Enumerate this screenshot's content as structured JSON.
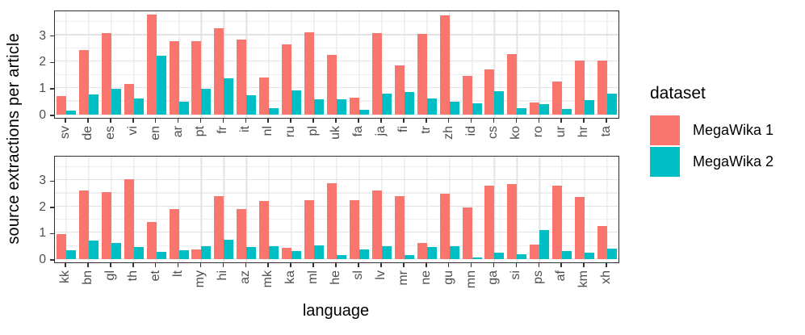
{
  "chart_data": {
    "type": "bar",
    "title": "",
    "xlabel": "language",
    "ylabel": "source extractions per article",
    "legend_title": "dataset",
    "legend_position": "right",
    "grid": true,
    "y_ticks": [
      "0",
      "1",
      "2",
      "3"
    ],
    "ylim": [
      0,
      3.9
    ],
    "series": [
      {
        "name": "MegaWika 1",
        "color": "#F8766D"
      },
      {
        "name": "MegaWika 2",
        "color": "#00BFC4"
      }
    ],
    "panels": [
      {
        "categories": [
          "sv",
          "de",
          "es",
          "vi",
          "en",
          "ar",
          "pt",
          "fr",
          "it",
          "nl",
          "ru",
          "pl",
          "uk",
          "fa",
          "ja",
          "fi",
          "tr",
          "zh",
          "id",
          "cs",
          "ko",
          "ro",
          "ur",
          "hr",
          "ta"
        ],
        "megawika1": [
          0.7,
          2.45,
          3.07,
          1.15,
          3.78,
          2.78,
          2.78,
          3.25,
          2.82,
          1.4,
          2.65,
          3.12,
          2.25,
          0.65,
          3.08,
          1.85,
          3.05,
          3.75,
          1.45,
          1.7,
          2.3,
          0.45,
          1.25,
          2.05,
          2.05
        ],
        "megawika2": [
          0.15,
          0.77,
          0.98,
          0.6,
          2.22,
          0.5,
          0.97,
          1.37,
          0.73,
          0.25,
          0.92,
          0.57,
          0.58,
          0.17,
          0.8,
          0.85,
          0.6,
          0.5,
          0.42,
          0.87,
          0.25,
          0.4,
          0.2,
          0.55,
          0.78
        ]
      },
      {
        "categories": [
          "kk",
          "bn",
          "gl",
          "th",
          "et",
          "lt",
          "my",
          "hi",
          "az",
          "mk",
          "ka",
          "ml",
          "he",
          "sl",
          "lv",
          "mr",
          "ne",
          "gu",
          "mn",
          "ga",
          "si",
          "ps",
          "af",
          "km",
          "xh"
        ],
        "megawika1": [
          0.95,
          2.6,
          2.55,
          3.05,
          1.4,
          1.9,
          0.38,
          2.4,
          1.9,
          2.2,
          0.43,
          2.25,
          2.9,
          2.25,
          2.6,
          2.4,
          0.62,
          2.48,
          1.97,
          2.8,
          2.85,
          0.55,
          2.8,
          2.35,
          1.25
        ],
        "megawika2": [
          0.33,
          0.7,
          0.62,
          0.45,
          0.28,
          0.35,
          0.5,
          0.75,
          0.47,
          0.5,
          0.32,
          0.53,
          0.15,
          0.38,
          0.48,
          0.15,
          0.45,
          0.5,
          0.07,
          0.25,
          0.18,
          1.1,
          0.3,
          0.25,
          0.4
        ]
      }
    ]
  },
  "axis": {
    "x_title": "language",
    "y_title": "source extractions per article"
  },
  "legend": {
    "title": "dataset",
    "items": [
      {
        "label": "MegaWika 1",
        "color": "#F8766D"
      },
      {
        "label": "MegaWika 2",
        "color": "#00BFC4"
      }
    ]
  }
}
